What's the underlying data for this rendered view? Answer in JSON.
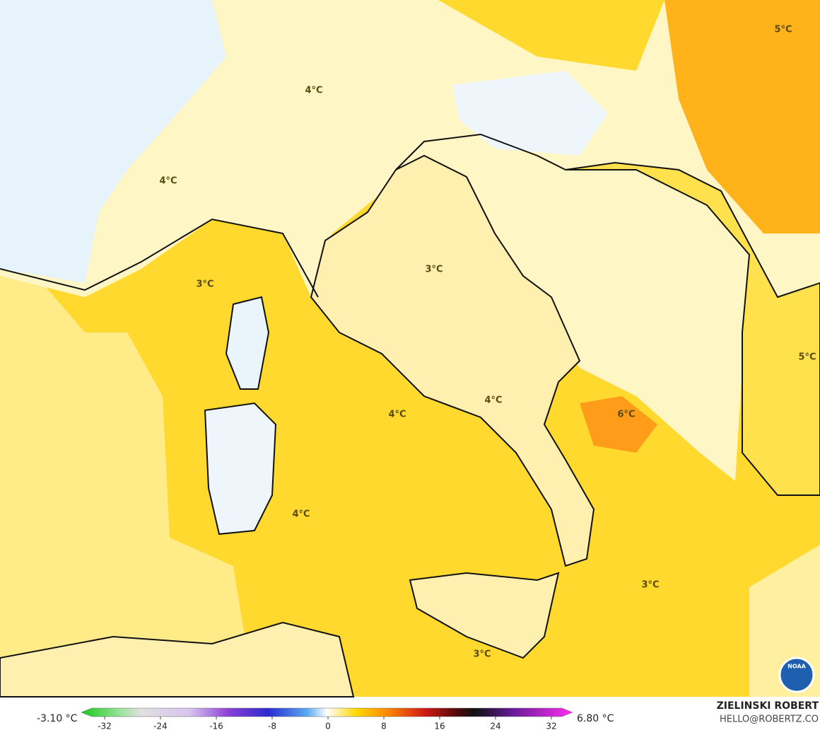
{
  "map_labels": [
    "5°C",
    "4°C",
    "4°C",
    "3°C",
    "3°C",
    "4°C",
    "4°C",
    "6°C",
    "4°C",
    "3°C",
    "3°C",
    "5°C"
  ],
  "colorbar": {
    "min_label": "-3.10 °C",
    "max_label": "6.80 °C",
    "ticks": [
      -32,
      -24,
      -16,
      -8,
      0,
      8,
      16,
      24,
      32
    ]
  },
  "credits": {
    "author": "ZIELINSKI ROBERT",
    "contact": "HELLO@ROBERTZ.CO",
    "logo": "NOAA"
  }
}
